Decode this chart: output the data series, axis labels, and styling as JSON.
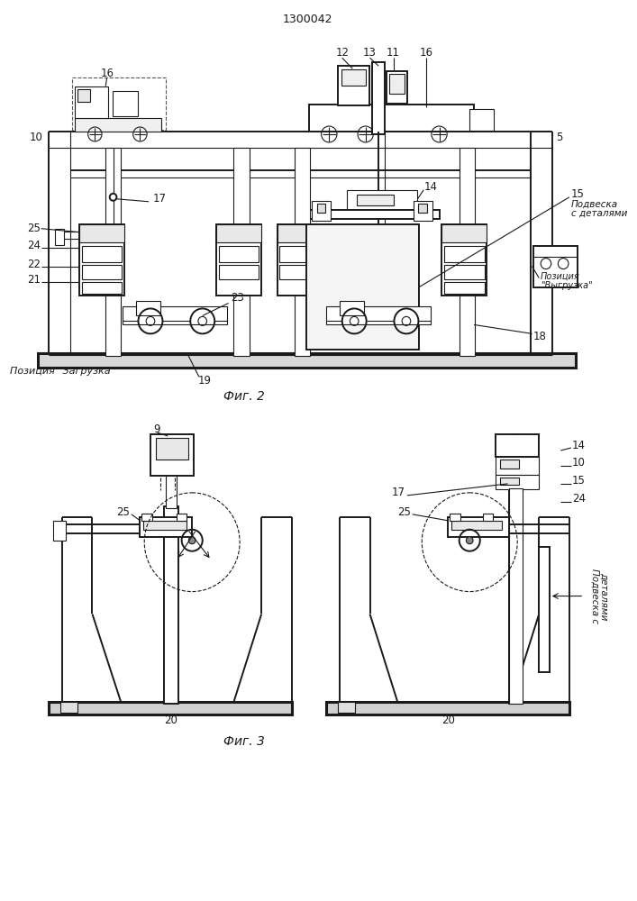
{
  "title": "1300042",
  "fig2_label": "Фиг. 2",
  "fig3_label": "Фиг. 3",
  "bg_color": "#ffffff",
  "line_color": "#1a1a1a"
}
